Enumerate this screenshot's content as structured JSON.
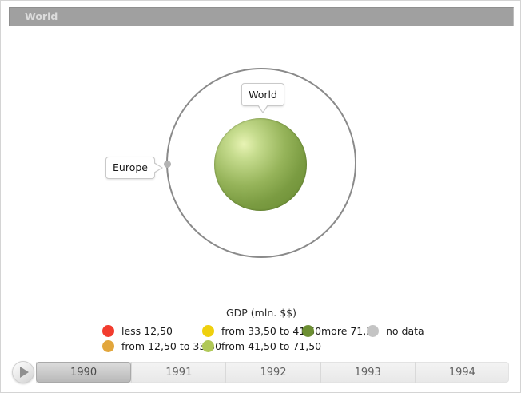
{
  "header": {
    "title": "World"
  },
  "chart": {
    "center_label": "World",
    "orbit_point_label": "Europe"
  },
  "legend": {
    "title": "GDP (mln. $$)",
    "items": [
      {
        "label": "less 12,50",
        "color": "#f23c2e"
      },
      {
        "label": "from 12,50 to 33,50",
        "color": "#e2a63c"
      },
      {
        "label": "from 33,50 to 41,50",
        "color": "#efd00e"
      },
      {
        "label": "from 41,50 to 71,50",
        "color": "#b0c858"
      },
      {
        "label": "more 71,50",
        "color": "#6d8f33"
      },
      {
        "label": "no data",
        "color": "#c4c4c4"
      }
    ]
  },
  "timeline": {
    "years": [
      "1990",
      "1991",
      "1992",
      "1993",
      "1994"
    ],
    "selected_year": "1990"
  },
  "chart_data": {
    "type": "bubble",
    "title": "World",
    "legend_title": "GDP (mln. $$)",
    "nodes": [
      {
        "name": "World",
        "position": "center",
        "color": "#7b9c42",
        "gdp_category": "more 71,50"
      },
      {
        "name": "Europe",
        "position": "orbit",
        "color": "#b3b3b3",
        "gdp_category": "no data"
      }
    ],
    "legend_buckets": [
      {
        "label": "less 12,50",
        "color": "#f23c2e"
      },
      {
        "label": "from 12,50 to 33,50",
        "color": "#e2a63c"
      },
      {
        "label": "from 33,50 to 41,50",
        "color": "#efd00e"
      },
      {
        "label": "from 41,50 to 71,50",
        "color": "#b0c858"
      },
      {
        "label": "more 71,50",
        "color": "#6d8f33"
      },
      {
        "label": "no data",
        "color": "#c4c4c4"
      }
    ],
    "timeline_years": [
      "1990",
      "1991",
      "1992",
      "1993",
      "1994"
    ],
    "selected_year": "1990"
  }
}
